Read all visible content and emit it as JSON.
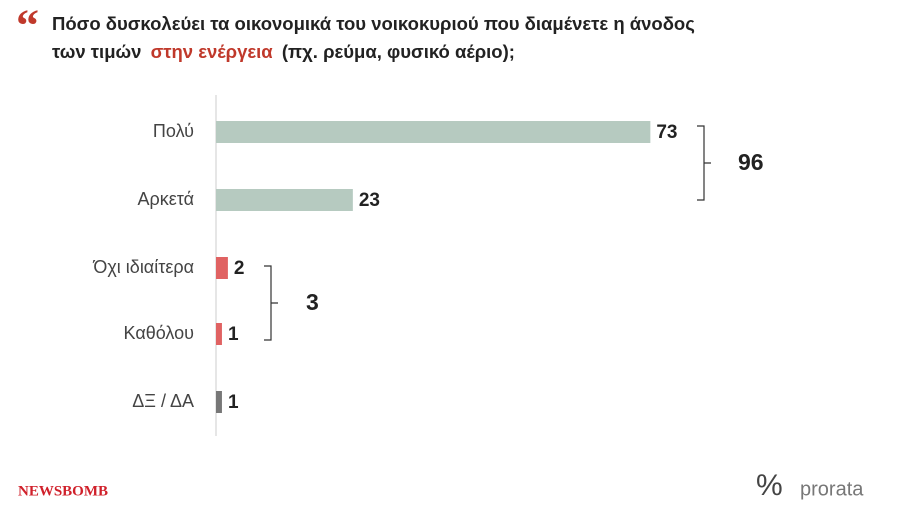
{
  "chart_data": {
    "type": "hbar",
    "title": {
      "line1": "Πόσο δυσκολεύει τα οικονομικά του νοικοκυριού που διαμένετε η άνοδος",
      "line2": [
        "των τιμών",
        "στην ενέργεια",
        "(πχ. ρεύμα, φυσικό αέριο);"
      ]
    },
    "categories": [
      "Πολύ",
      "Αρκετά",
      "Όχι ιδιαίτερα",
      "Καθόλου",
      "ΔΞ / ΔΑ"
    ],
    "values": [
      73,
      23,
      2,
      1,
      1
    ],
    "colors": [
      "#b6cac0",
      "#b6cac0",
      "#e06262",
      "#e06262",
      "#777777"
    ],
    "xlim": [
      0,
      100
    ],
    "annotations": [
      96,
      3
    ]
  },
  "footer": {
    "left_logo": "NEWSBOMB",
    "right_symbol": "%",
    "right_logo": "prorata"
  }
}
